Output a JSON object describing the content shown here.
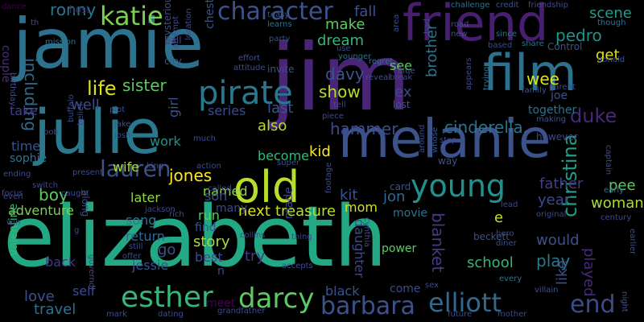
{
  "wordcloud": {
    "background": "#000000",
    "words": [
      {
        "text": "elizabeth",
        "color": "#22A884"
      },
      {
        "text": "jim",
        "color": "#482576"
      },
      {
        "text": "jamie",
        "color": "#2C728E"
      },
      {
        "text": "julie",
        "color": "#2A788E"
      },
      {
        "text": "melanie",
        "color": "#3B528B"
      },
      {
        "text": "friend",
        "color": "#481F70"
      },
      {
        "text": "film",
        "color": "#2C728E"
      },
      {
        "text": "old",
        "color": "#B8DE29"
      },
      {
        "text": "pirate",
        "color": "#2A788E"
      },
      {
        "text": "character",
        "color": "#3B528B"
      },
      {
        "text": "katie",
        "color": "#7AD151"
      },
      {
        "text": "young",
        "color": "#21918C"
      },
      {
        "text": "esther",
        "color": "#35B779"
      },
      {
        "text": "darcy",
        "color": "#5EC962"
      },
      {
        "text": "barbara",
        "color": "#3B528B"
      },
      {
        "text": "elliott",
        "color": "#31688E"
      },
      {
        "text": "end",
        "color": "#3E4A89"
      },
      {
        "text": "lauren",
        "color": "#3B528B"
      },
      {
        "text": "life",
        "color": "#DCE319"
      },
      {
        "text": "duke",
        "color": "#482878"
      },
      {
        "text": "christina",
        "color": "#1F9E89"
      },
      {
        "text": "ronny",
        "color": "#2A788E"
      },
      {
        "text": "sister",
        "color": "#5EC962"
      },
      {
        "text": "jones",
        "color": "#FDE725"
      },
      {
        "text": "cinderella.",
        "color": "#2C728E"
      },
      {
        "text": "hammer",
        "color": "#3E4A89"
      },
      {
        "text": "show",
        "color": "#B5DE2B"
      },
      {
        "text": "davy",
        "color": "#3B528B"
      },
      {
        "text": "wee",
        "color": "#DCE319"
      },
      {
        "text": "pedro",
        "color": "#21918C"
      },
      {
        "text": "scene",
        "color": "#1F9E89"
      },
      {
        "text": "fall",
        "color": "#3B528B"
      },
      {
        "text": "make",
        "color": "#5EC962"
      },
      {
        "text": "dream",
        "color": "#35B779"
      },
      {
        "text": "including",
        "color": "#31688E"
      },
      {
        "text": "well",
        "color": "#3E4A89"
      },
      {
        "text": "take",
        "color": "#433E85"
      },
      {
        "text": "couple",
        "color": "#472D7B"
      },
      {
        "text": "time",
        "color": "#3B528B"
      },
      {
        "text": "sophie",
        "color": "#2C728E"
      },
      {
        "text": "boy",
        "color": "#5EC962"
      },
      {
        "text": "adventure",
        "color": "#7AD151"
      },
      {
        "text": "song",
        "color": "#2A788E"
      },
      {
        "text": "return",
        "color": "#31688E"
      },
      {
        "text": "jessie",
        "color": "#3B528B"
      },
      {
        "text": "back",
        "color": "#443983"
      },
      {
        "text": "self",
        "color": "#3E4A89"
      },
      {
        "text": "love",
        "color": "#3B528B"
      },
      {
        "text": "travel",
        "color": "#2C728E"
      },
      {
        "text": "valentine",
        "color": "#35B779"
      },
      {
        "text": "work",
        "color": "#21918C"
      },
      {
        "text": "wife",
        "color": "#AADC32"
      },
      {
        "text": "later",
        "color": "#90D743"
      },
      {
        "text": "go",
        "color": "#3B528B"
      },
      {
        "text": "run",
        "color": "#5EC962"
      },
      {
        "text": "story",
        "color": "#AADC32"
      },
      {
        "text": "best",
        "color": "#3E4A89"
      },
      {
        "text": "meet",
        "color": "#440154"
      },
      {
        "text": "try",
        "color": "#443983"
      },
      {
        "text": "next",
        "color": "#DCE319"
      },
      {
        "text": "treasure",
        "color": "#B8DE29"
      },
      {
        "text": "kit",
        "color": "#3B528B"
      },
      {
        "text": "jon",
        "color": "#31688E"
      },
      {
        "text": "mom",
        "color": "#D2E21B"
      },
      {
        "text": "movie",
        "color": "#2C728E"
      },
      {
        "text": "daughter",
        "color": "#3E4A89"
      },
      {
        "text": "blanket",
        "color": "#443983"
      },
      {
        "text": "school",
        "color": "#35B779"
      },
      {
        "text": "play",
        "color": "#2A788E"
      },
      {
        "text": "would",
        "color": "#3B528B"
      },
      {
        "text": "like",
        "color": "#3B528B"
      },
      {
        "text": "played",
        "color": "#482878"
      },
      {
        "text": "woman",
        "color": "#AADC32"
      },
      {
        "text": "year",
        "color": "#3E4A89"
      },
      {
        "text": "father",
        "color": "#433E85"
      },
      {
        "text": "pee",
        "color": "#5EC962"
      },
      {
        "text": "kid",
        "color": "#FDE725"
      },
      {
        "text": "become",
        "color": "#35B779"
      },
      {
        "text": "also",
        "color": "#B5DE2B"
      },
      {
        "text": "last",
        "color": "#3B528B"
      },
      {
        "text": "series",
        "color": "#3E4A89"
      },
      {
        "text": "named",
        "color": "#90D743"
      },
      {
        "text": "black",
        "color": "#3B528B"
      },
      {
        "text": "come",
        "color": "#3E4A89"
      },
      {
        "text": "power",
        "color": "#5EC962"
      },
      {
        "text": "card",
        "color": "#3B528B"
      },
      {
        "text": "ex",
        "color": "#3E4A89"
      },
      {
        "text": "see",
        "color": "#5EC962"
      },
      {
        "text": "lost",
        "color": "#3B528B"
      },
      {
        "text": "brother",
        "color": "#2C728E"
      },
      {
        "text": "get",
        "color": "#DCE319"
      },
      {
        "text": "joe",
        "color": "#3B528B"
      },
      {
        "text": "together",
        "color": "#2C728E"
      },
      {
        "text": "son",
        "color": "#3B528B"
      },
      {
        "text": "many",
        "color": "#3E4A89"
      },
      {
        "text": "find",
        "color": "#3B528B"
      },
      {
        "text": "made",
        "color": "#3E4A89"
      },
      {
        "text": "n",
        "color": "#3E4A89"
      },
      {
        "text": "e",
        "color": "#C2DF23"
      },
      {
        "text": "girl",
        "color": "#3B528B"
      },
      {
        "text": "mysterious",
        "color": "#3E4A89"
      },
      {
        "text": "chester",
        "color": "#3B528B"
      },
      {
        "text": "host",
        "color": "#482878"
      },
      {
        "text": "dance",
        "color": "#440154"
      },
      {
        "text": "teasy",
        "color": "#3B528B"
      },
      {
        "text": "learns",
        "color": "#2C728E"
      },
      {
        "text": "party",
        "color": "#3E4A89"
      },
      {
        "text": "mission",
        "color": "#2C728E"
      },
      {
        "text": "ball",
        "color": "#3E4A89"
      },
      {
        "text": "city",
        "color": "#3B528B"
      },
      {
        "text": "effort",
        "color": "#3B528B"
      },
      {
        "text": "attitude",
        "color": "#3E4A89"
      },
      {
        "text": "invite",
        "color": "#3B528B"
      },
      {
        "text": "challenge",
        "color": "#2C728E"
      },
      {
        "text": "credit",
        "color": "#3B528B"
      },
      {
        "text": "friendship",
        "color": "#3E4A89"
      },
      {
        "text": "road",
        "color": "#3B528B"
      },
      {
        "text": "new",
        "color": "#3B528B"
      },
      {
        "text": "based",
        "color": "#3E4A89"
      },
      {
        "text": "since",
        "color": "#2C728E"
      },
      {
        "text": "share",
        "color": "#2C728E"
      },
      {
        "text": "Control",
        "color": "#3B528B"
      },
      {
        "text": "donald",
        "color": "#3B528B"
      },
      {
        "text": "though",
        "color": "#2C728E"
      },
      {
        "text": "younger",
        "color": "#2C728E"
      },
      {
        "text": "regret",
        "color": "#2C728E"
      },
      {
        "text": "reveal",
        "color": "#3B528B"
      },
      {
        "text": "break",
        "color": "#3E4A89"
      },
      {
        "text": "blue",
        "color": "#3B528B"
      },
      {
        "text": "trying",
        "color": "#2C728E"
      },
      {
        "text": "appears",
        "color": "#3E4A89"
      },
      {
        "text": "family",
        "color": "#3B528B"
      },
      {
        "text": "parent",
        "color": "#3E4A89"
      },
      {
        "text": "piece",
        "color": "#3E4A89"
      },
      {
        "text": "tell",
        "color": "#3E4A89"
      },
      {
        "text": "stop",
        "color": "#3E4A89"
      },
      {
        "text": "making",
        "color": "#3B528B"
      },
      {
        "text": "however",
        "color": "#3E4A89"
      },
      {
        "text": "captain",
        "color": "#3E4A89"
      },
      {
        "text": "early",
        "color": "#2C728E"
      },
      {
        "text": "century",
        "color": "#3E4A89"
      },
      {
        "text": "earlier",
        "color": "#3E4A89"
      },
      {
        "text": "night",
        "color": "#3B528B"
      },
      {
        "text": "villain",
        "color": "#3B528B"
      },
      {
        "text": "mother",
        "color": "#3E4A89"
      },
      {
        "text": "every",
        "color": "#2C728E"
      },
      {
        "text": "future",
        "color": "#3E4A89"
      },
      {
        "text": "sex",
        "color": "#3E4A89"
      },
      {
        "text": "hero",
        "color": "#3E4A89"
      },
      {
        "text": "diner",
        "color": "#3B528B"
      },
      {
        "text": "original",
        "color": "#3E4A89"
      },
      {
        "text": "lead",
        "color": "#3E4A89"
      },
      {
        "text": "beckett",
        "color": "#3B528B"
      },
      {
        "text": "cynthia",
        "color": "#3E4A89"
      },
      {
        "text": "footage",
        "color": "#3E4A89"
      },
      {
        "text": "super",
        "color": "#3E4A89"
      },
      {
        "text": "whose",
        "color": "#3B528B"
      },
      {
        "text": "around",
        "color": "#3E4A89"
      },
      {
        "text": "way",
        "color": "#3B528B"
      },
      {
        "text": "thing",
        "color": "#3E4A89"
      },
      {
        "text": "accepts",
        "color": "#3E4A89"
      },
      {
        "text": "collins",
        "color": "#3E4A89"
      },
      {
        "text": "called",
        "color": "#3E4A89"
      },
      {
        "text": "action",
        "color": "#3E4A89"
      },
      {
        "text": "king",
        "color": "#3E4A89"
      },
      {
        "text": "jackson",
        "color": "#3E4A89"
      },
      {
        "text": "rich",
        "color": "#3E4A89"
      },
      {
        "text": "still",
        "color": "#3E4A89"
      },
      {
        "text": "offer",
        "color": "#3E4A89"
      },
      {
        "text": "dating",
        "color": "#3E4A89"
      },
      {
        "text": "documentary",
        "color": "#3E4A89"
      },
      {
        "text": "mark",
        "color": "#3E4A89"
      },
      {
        "text": "grandfather",
        "color": "#3E4A89"
      },
      {
        "text": "along",
        "color": "#3E4A89"
      },
      {
        "text": "buffalo",
        "color": "#3E4A89"
      },
      {
        "text": "belief",
        "color": "#3E4A89"
      },
      {
        "text": "jake",
        "color": "#3E4A89"
      },
      {
        "text": "josh",
        "color": "#3E4A89"
      },
      {
        "text": "bob",
        "color": "#3E4A89"
      },
      {
        "text": "much",
        "color": "#3E4A89"
      },
      {
        "text": "present",
        "color": "#3E4A89"
      },
      {
        "text": "location",
        "color": "#3E4A89"
      },
      {
        "text": "attempt",
        "color": "#3E4A89"
      },
      {
        "text": "birthday",
        "color": "#3E4A89"
      },
      {
        "text": "area",
        "color": "#3E4A89"
      },
      {
        "text": "bad",
        "color": "#3E4A89"
      },
      {
        "text": "use",
        "color": "#3E4A89"
      },
      {
        "text": "th",
        "color": "#3E4A89"
      },
      {
        "text": "ending",
        "color": "#3E4A89"
      },
      {
        "text": "focus",
        "color": "#3E4A89"
      },
      {
        "text": "switch",
        "color": "#3E4A89"
      },
      {
        "text": "even",
        "color": "#3E4A89"
      },
      {
        "text": "win",
        "color": "#3E4A89"
      },
      {
        "text": "caught",
        "color": "#3E4A89"
      },
      {
        "text": "governor",
        "color": "#3E4A89"
      },
      {
        "text": "g",
        "color": "#3E4A89"
      },
      {
        "text": "plot",
        "color": "#3E4A89"
      }
    ]
  }
}
